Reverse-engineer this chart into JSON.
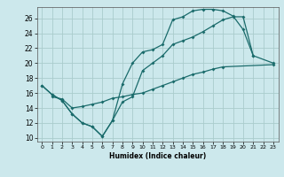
{
  "xlabel": "Humidex (Indice chaleur)",
  "bg_color": "#cce8ec",
  "grid_color": "#aacccc",
  "line_color": "#1a6b6b",
  "xlim": [
    -0.5,
    23.5
  ],
  "ylim": [
    9.5,
    27.5
  ],
  "xticks": [
    0,
    1,
    2,
    3,
    4,
    5,
    6,
    7,
    8,
    9,
    10,
    11,
    12,
    13,
    14,
    15,
    16,
    17,
    18,
    19,
    20,
    21,
    22,
    23
  ],
  "yticks": [
    10,
    12,
    14,
    16,
    18,
    20,
    22,
    24,
    26
  ],
  "line1_x": [
    0,
    1,
    2,
    3,
    4,
    5,
    6,
    7,
    8,
    9,
    10,
    11,
    12,
    13,
    14,
    15,
    16,
    17,
    18,
    19,
    20,
    21,
    23
  ],
  "line1_y": [
    17.0,
    15.8,
    15.0,
    13.2,
    12.0,
    11.5,
    10.2,
    12.3,
    17.2,
    20.0,
    21.5,
    21.8,
    22.5,
    25.8,
    26.2,
    27.0,
    27.2,
    27.2,
    27.0,
    26.3,
    24.5,
    21.0,
    20.0
  ],
  "line2_x": [
    0,
    1,
    2,
    3,
    4,
    5,
    6,
    7,
    8,
    9,
    10,
    11,
    12,
    13,
    14,
    15,
    16,
    17,
    18,
    19,
    20,
    21
  ],
  "line2_y": [
    17.0,
    15.8,
    15.0,
    13.2,
    12.0,
    11.5,
    10.2,
    12.3,
    14.8,
    15.5,
    19.0,
    20.0,
    21.0,
    22.5,
    23.0,
    23.5,
    24.2,
    25.0,
    25.8,
    26.2,
    26.2,
    21.0
  ],
  "line3_x": [
    1,
    2,
    3,
    4,
    5,
    6,
    7,
    8,
    9,
    10,
    11,
    12,
    13,
    14,
    15,
    16,
    17,
    18,
    23
  ],
  "line3_y": [
    15.5,
    15.2,
    14.0,
    14.2,
    14.5,
    14.8,
    15.3,
    15.5,
    15.8,
    16.0,
    16.5,
    17.0,
    17.5,
    18.0,
    18.5,
    18.8,
    19.2,
    19.5,
    19.8
  ]
}
